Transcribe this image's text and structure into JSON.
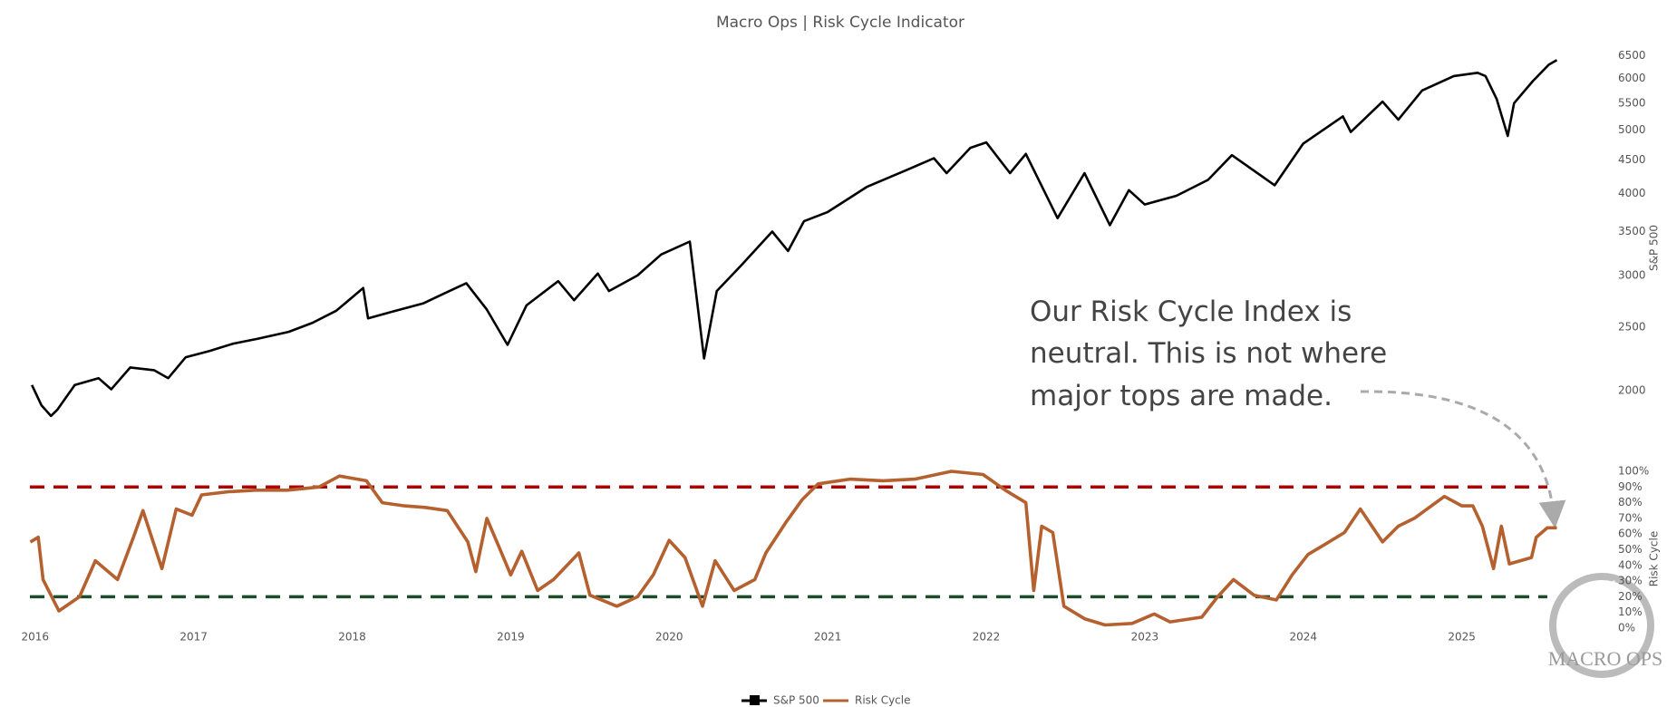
{
  "chart_data": [
    {
      "type": "line",
      "title": "Macro Ops | Risk Cycle Indicator",
      "y_label": "S&P 500",
      "ylog": true,
      "xlim": [
        2015.95,
        2025.7
      ],
      "ylim": [
        1700,
        7300
      ],
      "yticks": [
        2000,
        2500,
        3000,
        3500,
        4000,
        4500,
        5000,
        5500,
        6000,
        6500
      ],
      "x": [
        2015.98,
        2016.04,
        2016.1,
        2016.14,
        2016.25,
        2016.4,
        2016.48,
        2016.6,
        2016.75,
        2016.84,
        2016.95,
        2017.1,
        2017.25,
        2017.4,
        2017.6,
        2017.75,
        2017.9,
        2018.07,
        2018.1,
        2018.25,
        2018.45,
        2018.6,
        2018.72,
        2018.85,
        2018.98,
        2019.1,
        2019.3,
        2019.4,
        2019.55,
        2019.62,
        2019.8,
        2019.95,
        2020.13,
        2020.22,
        2020.3,
        2020.45,
        2020.65,
        2020.75,
        2020.85,
        2021.0,
        2021.25,
        2021.5,
        2021.67,
        2021.75,
        2021.9,
        2022.0,
        2022.15,
        2022.25,
        2022.45,
        2022.62,
        2022.78,
        2022.9,
        2023.0,
        2023.2,
        2023.4,
        2023.55,
        2023.82,
        2024.0,
        2024.25,
        2024.3,
        2024.5,
        2024.6,
        2024.75,
        2024.95,
        2025.1,
        2025.15,
        2025.22,
        2025.29,
        2025.33,
        2025.45,
        2025.55,
        2025.6
      ],
      "series": [
        {
          "name": "S&P 500",
          "color": "#000000",
          "values": [
            2040,
            1900,
            1830,
            1870,
            2040,
            2090,
            2010,
            2170,
            2150,
            2090,
            2250,
            2300,
            2360,
            2400,
            2460,
            2540,
            2650,
            2870,
            2580,
            2640,
            2720,
            2830,
            2920,
            2660,
            2350,
            2700,
            2940,
            2750,
            3020,
            2840,
            3000,
            3230,
            3380,
            2240,
            2840,
            3100,
            3500,
            3270,
            3630,
            3750,
            4100,
            4350,
            4530,
            4300,
            4700,
            4790,
            4300,
            4600,
            3670,
            4300,
            3580,
            4050,
            3850,
            3970,
            4200,
            4580,
            4120,
            4770,
            5250,
            4970,
            5530,
            5190,
            5750,
            6050,
            6120,
            6050,
            5580,
            4900,
            5500,
            5950,
            6300,
            6400
          ]
        }
      ],
      "annotation": [
        "Our Risk Cycle Index is",
        "neutral. This is not where",
        "major tops are made."
      ]
    },
    {
      "type": "line",
      "y_label": "Risk Cycle",
      "xlim": [
        2015.95,
        2025.7
      ],
      "ylim": [
        0,
        100
      ],
      "xticks": [
        2016,
        2017,
        2018,
        2019,
        2020,
        2021,
        2022,
        2023,
        2024,
        2025
      ],
      "yticks": [
        {
          "value": 0,
          "label": "0%"
        },
        {
          "value": 10,
          "label": "10%"
        },
        {
          "value": 20,
          "label": "20%"
        },
        {
          "value": 30,
          "label": "30%"
        },
        {
          "value": 40,
          "label": "40%"
        },
        {
          "value": 50,
          "label": "50%"
        },
        {
          "value": 60,
          "label": "60%"
        },
        {
          "value": 70,
          "label": "70%"
        },
        {
          "value": 80,
          "label": "80%"
        },
        {
          "value": 90,
          "label": "90%"
        },
        {
          "value": 100,
          "label": "100%"
        }
      ],
      "reference_lines": [
        {
          "value": 90,
          "color": "#b00000"
        },
        {
          "value": 20,
          "color": "#1d4d2c"
        }
      ],
      "x": [
        2015.97,
        2016.02,
        2016.05,
        2016.15,
        2016.28,
        2016.38,
        2016.52,
        2016.62,
        2016.68,
        2016.8,
        2016.89,
        2016.99,
        2017.05,
        2017.22,
        2017.39,
        2017.59,
        2017.79,
        2017.92,
        2018.09,
        2018.19,
        2018.33,
        2018.46,
        2018.6,
        2018.73,
        2018.78,
        2018.85,
        2018.93,
        2019.0,
        2019.07,
        2019.17,
        2019.27,
        2019.43,
        2019.5,
        2019.67,
        2019.8,
        2019.9,
        2020.0,
        2020.1,
        2020.21,
        2020.29,
        2020.41,
        2020.54,
        2020.61,
        2020.74,
        2020.84,
        2020.94,
        2021.14,
        2021.35,
        2021.55,
        2021.78,
        2021.98,
        2022.12,
        2022.25,
        2022.3,
        2022.35,
        2022.42,
        2022.49,
        2022.62,
        2022.75,
        2022.92,
        2023.06,
        2023.16,
        2023.36,
        2023.46,
        2023.56,
        2023.69,
        2023.83,
        2023.93,
        2024.03,
        2024.13,
        2024.26,
        2024.36,
        2024.5,
        2024.6,
        2024.7,
        2024.89,
        2025.0,
        2025.07,
        2025.13,
        2025.2,
        2025.25,
        2025.3,
        2025.44,
        2025.47,
        2025.54,
        2025.6
      ],
      "series": [
        {
          "name": "Risk Cycle",
          "color": "#b5602f",
          "values": [
            55,
            58,
            31,
            11,
            20,
            43,
            31,
            58,
            75,
            38,
            76,
            72,
            85,
            87,
            88,
            88,
            90,
            97,
            94,
            80,
            78,
            77,
            75,
            55,
            36,
            70,
            51,
            34,
            49,
            24,
            31,
            48,
            21,
            14,
            20,
            34,
            56,
            45,
            14,
            43,
            24,
            31,
            48,
            68,
            82,
            92,
            95,
            94,
            95,
            100,
            98,
            88,
            80,
            24,
            65,
            61,
            14,
            6,
            2,
            3,
            9,
            4,
            7,
            20,
            31,
            21,
            18,
            34,
            47,
            53,
            61,
            76,
            55,
            65,
            70,
            84,
            78,
            78,
            65,
            38,
            65,
            41,
            45,
            58,
            64,
            64
          ]
        }
      ]
    }
  ],
  "logo": "MACRO OPS"
}
